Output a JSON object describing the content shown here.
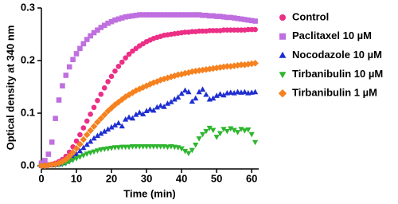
{
  "chart_data": {
    "type": "scatter",
    "x_label": "Time (min)",
    "y_label": "Optical density at 340 nm",
    "x": [
      0,
      1,
      2,
      3,
      4,
      5,
      6,
      7,
      8,
      9,
      10,
      11,
      12,
      13,
      14,
      15,
      16,
      17,
      18,
      19,
      20,
      21,
      22,
      23,
      24,
      25,
      26,
      27,
      28,
      29,
      30,
      31,
      32,
      33,
      34,
      35,
      36,
      37,
      38,
      39,
      40,
      41,
      42,
      43,
      44,
      45,
      46,
      47,
      48,
      49,
      50,
      51,
      52,
      53,
      54,
      55,
      56,
      57,
      58,
      59,
      60,
      61
    ],
    "xlim": [
      0,
      62
    ],
    "xticks": [
      0,
      10,
      20,
      30,
      40,
      50,
      60
    ],
    "ylim": [
      -0.006,
      0.3
    ],
    "yticks": [
      {
        "value": 0,
        "label": "0.0"
      },
      {
        "value": 0.1,
        "label": "0.1"
      },
      {
        "value": 0.2,
        "label": "0.2"
      },
      {
        "value": 0.3,
        "label": "0.3"
      }
    ],
    "grid": false,
    "legend": "right",
    "series": [
      {
        "name": "Control",
        "color": "#ec2f86",
        "marker": "circle",
        "values": [
          0.0,
          0.001,
          0.002,
          0.003,
          0.005,
          0.008,
          0.012,
          0.018,
          0.026,
          0.036,
          0.047,
          0.059,
          0.072,
          0.085,
          0.098,
          0.111,
          0.124,
          0.136,
          0.148,
          0.16,
          0.17,
          0.18,
          0.189,
          0.197,
          0.205,
          0.212,
          0.218,
          0.223,
          0.228,
          0.232,
          0.236,
          0.239,
          0.242,
          0.244,
          0.246,
          0.248,
          0.249,
          0.25,
          0.251,
          0.252,
          0.253,
          0.254,
          0.254,
          0.255,
          0.255,
          0.256,
          0.256,
          0.256,
          0.257,
          0.257,
          0.257,
          0.257,
          0.258,
          0.258,
          0.258,
          0.258,
          0.258,
          0.258,
          0.258,
          0.259,
          0.259,
          0.259
        ]
      },
      {
        "name": "Paclitaxel 10 µM",
        "color": "#bf6fdf",
        "marker": "square",
        "values": [
          0.005,
          0.01,
          0.022,
          0.045,
          0.09,
          0.125,
          0.152,
          0.172,
          0.188,
          0.202,
          0.213,
          0.223,
          0.232,
          0.24,
          0.247,
          0.253,
          0.258,
          0.263,
          0.267,
          0.271,
          0.274,
          0.277,
          0.279,
          0.281,
          0.283,
          0.284,
          0.285,
          0.286,
          0.287,
          0.287,
          0.287,
          0.287,
          0.287,
          0.287,
          0.287,
          0.287,
          0.287,
          0.287,
          0.287,
          0.287,
          0.287,
          0.287,
          0.287,
          0.287,
          0.287,
          0.287,
          0.286,
          0.286,
          0.285,
          0.285,
          0.284,
          0.284,
          0.283,
          0.282,
          0.282,
          0.281,
          0.28,
          0.279,
          0.278,
          0.277,
          0.276,
          0.275
        ]
      },
      {
        "name": "Nocodazole 10 µM",
        "color": "#1f2fd0",
        "marker": "triangle",
        "values": [
          0.0,
          0.0,
          0.001,
          0.001,
          0.002,
          0.003,
          0.005,
          0.008,
          0.012,
          0.017,
          0.022,
          0.028,
          0.034,
          0.04,
          0.046,
          0.052,
          0.057,
          0.061,
          0.065,
          0.069,
          0.073,
          0.077,
          0.081,
          0.075,
          0.088,
          0.092,
          0.09,
          0.097,
          0.101,
          0.098,
          0.104,
          0.107,
          0.105,
          0.111,
          0.114,
          0.112,
          0.118,
          0.121,
          0.126,
          0.13,
          0.137,
          0.143,
          0.14,
          0.122,
          0.128,
          0.14,
          0.145,
          0.135,
          0.126,
          0.128,
          0.133,
          0.136,
          0.134,
          0.138,
          0.139,
          0.138,
          0.14,
          0.139,
          0.14,
          0.138,
          0.139,
          0.14
        ]
      },
      {
        "name": "Tirbanibulin 10 µM",
        "color": "#2fb52f",
        "marker": "triangle-down",
        "values": [
          0.0,
          0.0,
          0.0,
          0.001,
          0.001,
          0.002,
          0.003,
          0.005,
          0.008,
          0.011,
          0.014,
          0.017,
          0.02,
          0.023,
          0.025,
          0.027,
          0.029,
          0.031,
          0.032,
          0.033,
          0.034,
          0.035,
          0.035,
          0.036,
          0.036,
          0.036,
          0.037,
          0.037,
          0.037,
          0.037,
          0.037,
          0.037,
          0.037,
          0.037,
          0.037,
          0.037,
          0.036,
          0.037,
          0.036,
          0.035,
          0.033,
          0.028,
          0.024,
          0.03,
          0.04,
          0.052,
          0.06,
          0.066,
          0.072,
          0.068,
          0.055,
          0.062,
          0.07,
          0.066,
          0.071,
          0.068,
          0.064,
          0.07,
          0.067,
          0.069,
          0.06,
          0.045
        ]
      },
      {
        "name": "Tirbanibulin 1 µM",
        "color": "#f5821f",
        "marker": "diamond",
        "values": [
          0.0,
          0.0,
          0.001,
          0.002,
          0.003,
          0.005,
          0.008,
          0.012,
          0.018,
          0.025,
          0.033,
          0.041,
          0.05,
          0.059,
          0.067,
          0.075,
          0.083,
          0.09,
          0.097,
          0.104,
          0.11,
          0.116,
          0.121,
          0.126,
          0.131,
          0.135,
          0.139,
          0.143,
          0.146,
          0.149,
          0.152,
          0.155,
          0.158,
          0.16,
          0.163,
          0.165,
          0.167,
          0.169,
          0.171,
          0.173,
          0.174,
          0.176,
          0.177,
          0.179,
          0.18,
          0.181,
          0.182,
          0.183,
          0.184,
          0.185,
          0.186,
          0.187,
          0.188,
          0.189,
          0.189,
          0.19,
          0.191,
          0.192,
          0.192,
          0.193,
          0.194,
          0.195
        ]
      }
    ]
  }
}
